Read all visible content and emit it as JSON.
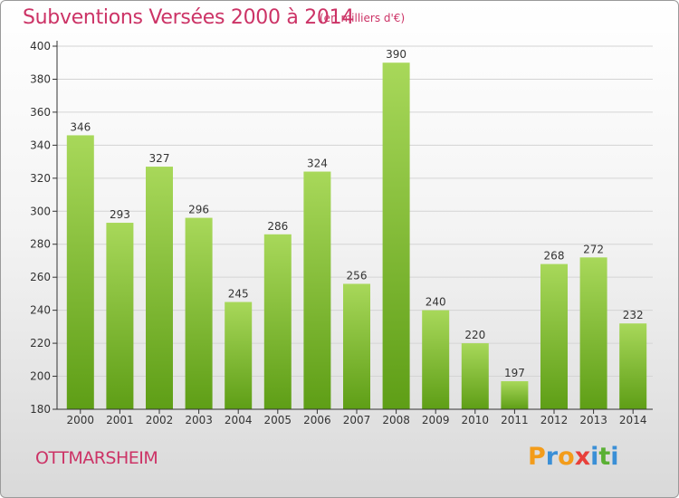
{
  "title": "Subventions Versées 2000 à 2014",
  "subtitle": "(en milliers d'€)",
  "city": "OTTMARSHEIM",
  "logo": {
    "letters": [
      "P",
      "r",
      "o",
      "x",
      "i",
      "t",
      "i"
    ],
    "colors": [
      "#f39c1a",
      "#3a8fd6",
      "#f39c1a",
      "#e8403a",
      "#3a8fd6",
      "#5ab034",
      "#3a8fd6"
    ]
  },
  "colors": {
    "bar_top": "#a8d85a",
    "bar_bottom": "#5e9e16",
    "axis": "#333333",
    "grid": "#d4d4d4",
    "label": "#333333"
  },
  "chart_data": {
    "type": "bar",
    "categories": [
      "2000",
      "2001",
      "2002",
      "2003",
      "2004",
      "2005",
      "2006",
      "2007",
      "2008",
      "2009",
      "2010",
      "2011",
      "2012",
      "2013",
      "2014"
    ],
    "values": [
      346,
      293,
      327,
      296,
      245,
      286,
      324,
      256,
      390,
      240,
      220,
      197,
      268,
      272,
      232
    ],
    "ylim": [
      180,
      400
    ],
    "yticks": [
      180,
      200,
      220,
      240,
      260,
      280,
      300,
      320,
      340,
      360,
      380,
      400
    ],
    "grid": true,
    "legend": "none"
  }
}
